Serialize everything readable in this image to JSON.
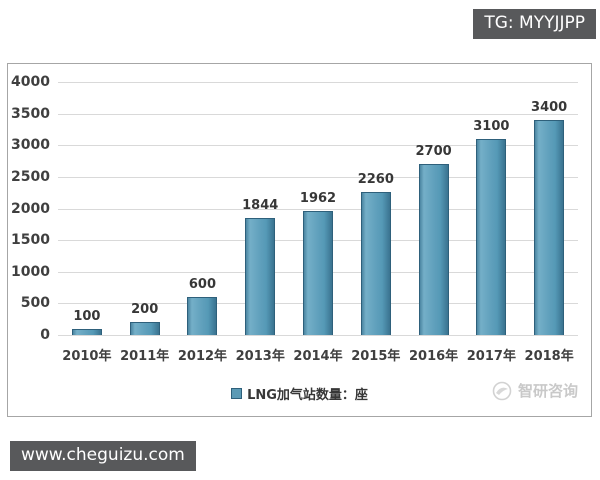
{
  "overlays": {
    "tg_badge": "TG: MYYJJPP",
    "website_badge": "www.cheguizu.com"
  },
  "watermark": {
    "brand": "智研咨询"
  },
  "chart_data": {
    "type": "bar",
    "title": "",
    "categories": [
      "2010年",
      "2011年",
      "2012年",
      "2013年",
      "2014年",
      "2015年",
      "2016年",
      "2017年",
      "2018年"
    ],
    "values": [
      100,
      200,
      600,
      1844,
      1962,
      2260,
      2700,
      3100,
      3400
    ],
    "legend": [
      "LNG加气站数量：座"
    ],
    "legend_position": "bottom",
    "xlabel": "",
    "ylabel": "",
    "ylim": [
      0,
      4000
    ],
    "ytick_step": 500,
    "grid": true,
    "colors": {
      "bar_fill": "#5b9ab5",
      "bar_border": "#2e607b",
      "gridline": "#d9d9d9",
      "axis_text": "#3f3f3f",
      "box_border": "#a6a6a6",
      "badge_bg": "#58595b",
      "watermark": "#c9c9c9"
    }
  }
}
